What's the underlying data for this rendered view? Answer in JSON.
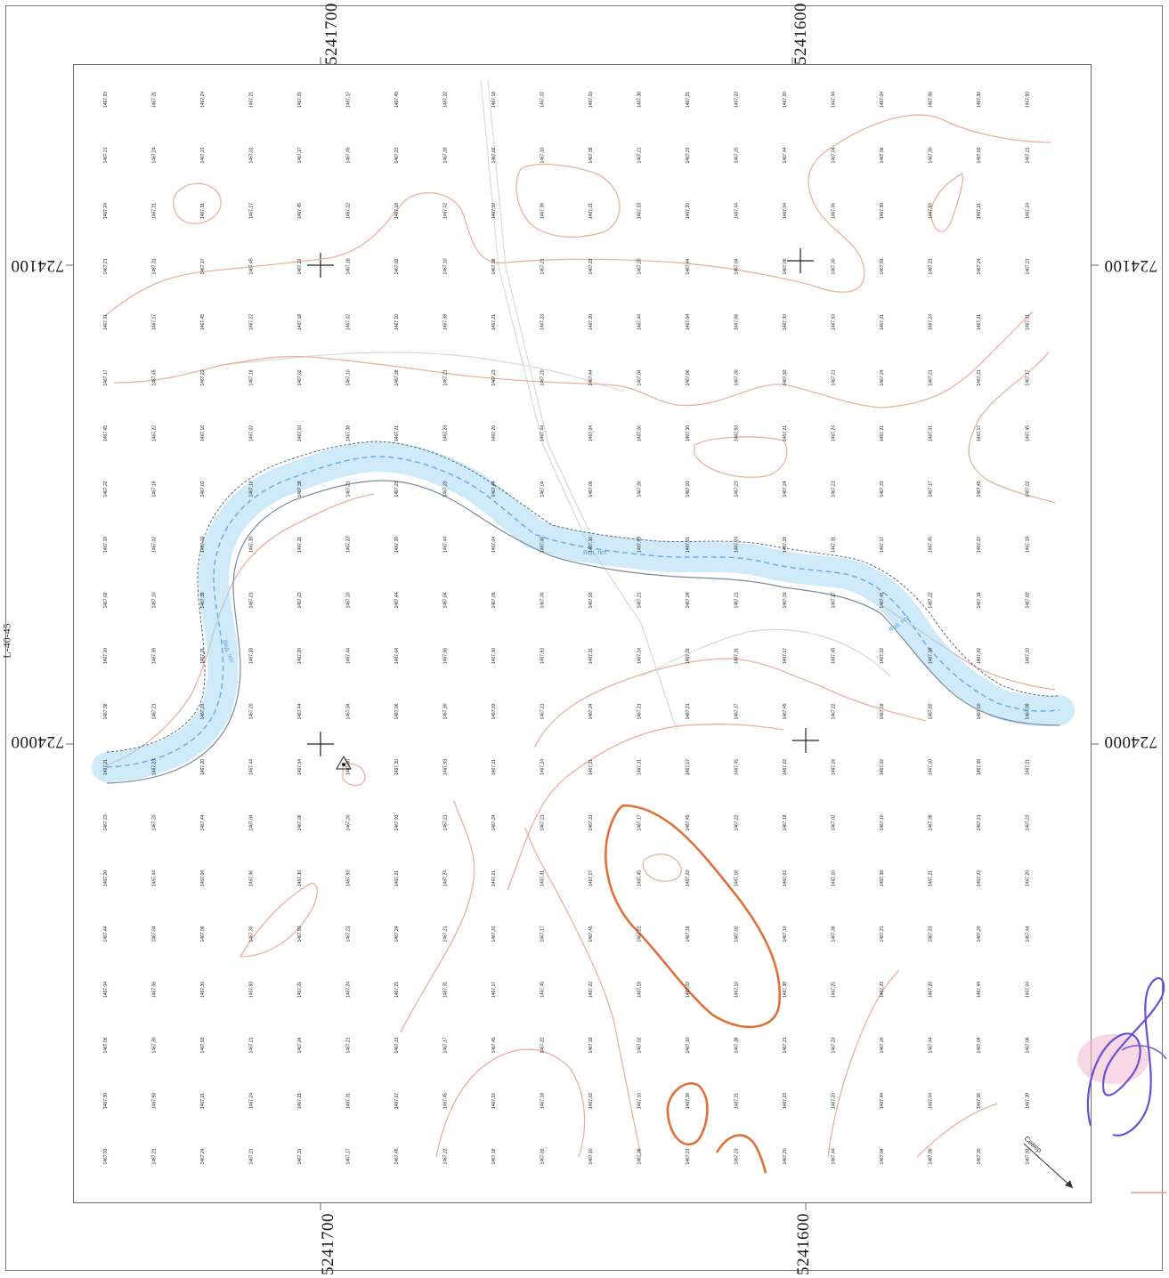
{
  "map": {
    "edge_label": "L-40-45",
    "coordinates": {
      "top_left": "5241700",
      "top_right": "5241600",
      "bottom_left": "5241700",
      "bottom_right": "5241600",
      "left_upper": "724100",
      "left_lower": "724000",
      "right_upper": "724100",
      "right_lower": "724000"
    },
    "annotations": {
      "north_arrow": "Север",
      "river_label_1": "Вод. пот",
      "river_label_2": "Вод. пот",
      "river_label_3": "Вод. пот"
    },
    "colors": {
      "contour": "#e8a08a",
      "contour_index": "#e0703a",
      "river": "#8ecdf0",
      "river_line": "#6aa8e0",
      "grid_text": "#222222",
      "frame": "#6a6a6a"
    },
    "spot_grid": {
      "rows": 20,
      "cols": 20,
      "sample_labels": [
        "1467,93",
        "1467,21",
        "1467,24",
        "1467,21",
        "1467,31",
        "1467,17",
        "1467,45",
        "1467,22",
        "1467,18",
        "1467,02",
        "1467,10",
        "1467,38",
        "1467,21",
        "1467,23",
        "1467,20",
        "1467,44",
        "1467,04",
        "1467,06",
        "1467,30"
      ]
    }
  }
}
